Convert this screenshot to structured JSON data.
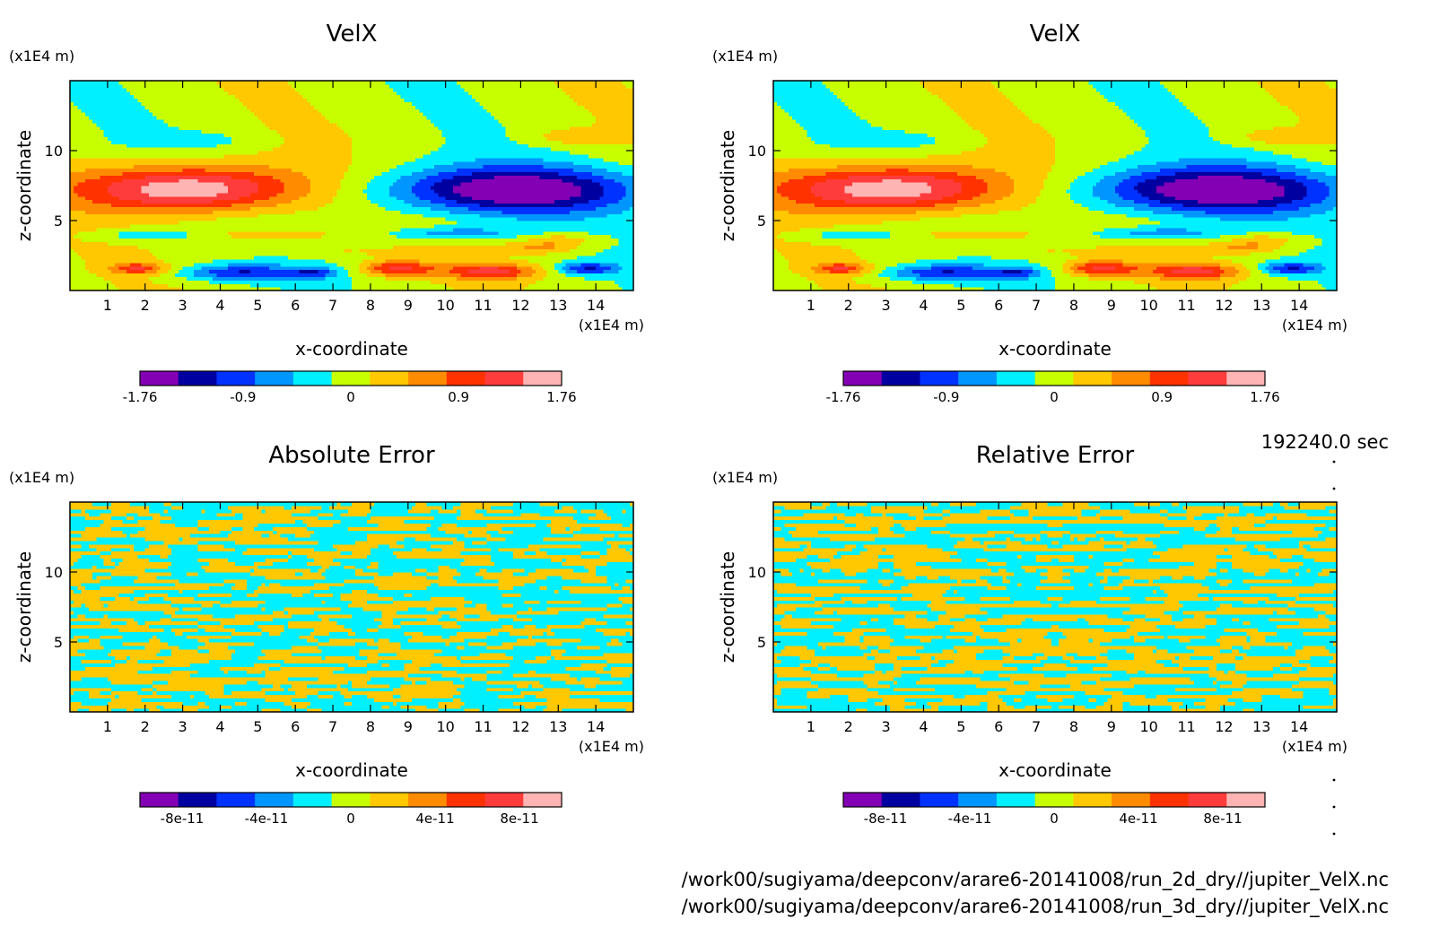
{
  "chart_data": [
    {
      "type": "heatmap",
      "title": "VelX",
      "xlabel": "x-coordinate",
      "ylabel": "z-coordinate",
      "x_unit": "(x1E4 m)",
      "y_unit": "(x1E4 m)",
      "xlim": [
        0,
        15
      ],
      "ylim": [
        0,
        15
      ],
      "x_ticks": [
        1,
        2,
        3,
        4,
        5,
        6,
        7,
        8,
        9,
        10,
        11,
        12,
        13,
        14
      ],
      "y_ticks": [
        5,
        10
      ],
      "colorbar": {
        "min": -1.76,
        "max": 1.76,
        "tick_labels": [
          "-1.76",
          "-0.9",
          "0",
          "0.9",
          "1.76"
        ],
        "tick_values": [
          -1.76,
          -0.9,
          0,
          0.9,
          1.76
        ]
      },
      "field": "velx"
    },
    {
      "type": "heatmap",
      "title": "VelX",
      "xlabel": "x-coordinate",
      "ylabel": "z-coordinate",
      "x_unit": "(x1E4 m)",
      "y_unit": "(x1E4 m)",
      "xlim": [
        0,
        15
      ],
      "ylim": [
        0,
        15
      ],
      "x_ticks": [
        1,
        2,
        3,
        4,
        5,
        6,
        7,
        8,
        9,
        10,
        11,
        12,
        13,
        14
      ],
      "y_ticks": [
        5,
        10
      ],
      "colorbar": {
        "min": -1.76,
        "max": 1.76,
        "tick_labels": [
          "-1.76",
          "-0.9",
          "0",
          "0.9",
          "1.76"
        ],
        "tick_values": [
          -1.76,
          -0.9,
          0,
          0.9,
          1.76
        ]
      },
      "field": "velx"
    },
    {
      "type": "heatmap",
      "title": "Absolute Error",
      "xlabel": "x-coordinate",
      "ylabel": "z-coordinate",
      "x_unit": "(x1E4 m)",
      "y_unit": "(x1E4 m)",
      "xlim": [
        0,
        15
      ],
      "ylim": [
        0,
        15
      ],
      "x_ticks": [
        1,
        2,
        3,
        4,
        5,
        6,
        7,
        8,
        9,
        10,
        11,
        12,
        13,
        14
      ],
      "y_ticks": [
        5,
        10
      ],
      "colorbar": {
        "min": -1e-10,
        "max": 1e-10,
        "tick_labels": [
          "-8e-11",
          "-4e-11",
          "0",
          "4e-11",
          "8e-11"
        ],
        "tick_values": [
          -8e-11,
          -4e-11,
          0,
          4e-11,
          8e-11
        ]
      },
      "field": "noise_abs"
    },
    {
      "type": "heatmap",
      "title": "Relative Error",
      "xlabel": "x-coordinate",
      "ylabel": "z-coordinate",
      "x_unit": "(x1E4 m)",
      "y_unit": "(x1E4 m)",
      "xlim": [
        0,
        15
      ],
      "ylim": [
        0,
        15
      ],
      "x_ticks": [
        1,
        2,
        3,
        4,
        5,
        6,
        7,
        8,
        9,
        10,
        11,
        12,
        13,
        14
      ],
      "y_ticks": [
        5,
        10
      ],
      "colorbar": {
        "min": -1e-10,
        "max": 1e-10,
        "tick_labels": [
          "-8e-11",
          "-4e-11",
          "0",
          "4e-11",
          "8e-11"
        ],
        "tick_values": [
          -8e-11,
          -4e-11,
          0,
          4e-11,
          8e-11
        ]
      },
      "field": "noise_rel"
    }
  ],
  "colors": [
    "#8400b4",
    "#0000a0",
    "#0032ff",
    "#0096ff",
    "#00f0ff",
    "#c8ff00",
    "#ffc800",
    "#ff8c00",
    "#ff3200",
    "#ff3c3c",
    "#ffb4b4"
  ],
  "time_label": "192240.0 sec",
  "file_paths": [
    "/work00/sugiyama/deepconv/arare6-20141008/run_2d_dry//jupiter_VelX.nc",
    "/work00/sugiyama/deepconv/arare6-20141008/run_3d_dry//jupiter_VelX.nc"
  ]
}
